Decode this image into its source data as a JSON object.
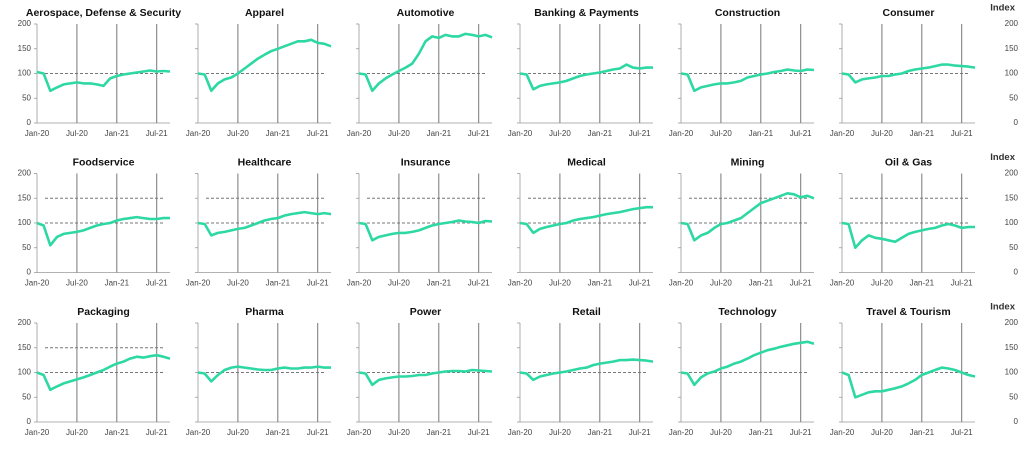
{
  "chart_data": [
    {
      "type": "line",
      "title": "Aerospace, Defense & Security",
      "categories": [
        "Jan-20",
        null,
        null,
        null,
        null,
        null,
        "Jul-20",
        null,
        null,
        null,
        null,
        null,
        "Jan-21",
        null,
        null,
        null,
        null,
        null,
        "Jul-21",
        null,
        null
      ],
      "series": [
        {
          "color": "#2ed8a3",
          "values": [
            103,
            100,
            65,
            72,
            78,
            80,
            82,
            80,
            80,
            78,
            75,
            90,
            95,
            98,
            100,
            102,
            104,
            106,
            104,
            105,
            104
          ]
        }
      ],
      "ylim": [
        0,
        200
      ],
      "yticks": [
        0,
        50,
        100,
        150,
        200
      ],
      "ref_lines": [
        100
      ]
    },
    {
      "type": "line",
      "title": "Apparel",
      "categories": [
        "Jan-20",
        null,
        null,
        null,
        null,
        null,
        "Jul-20",
        null,
        null,
        null,
        null,
        null,
        "Jan-21",
        null,
        null,
        null,
        null,
        null,
        "Jul-21",
        null,
        null
      ],
      "series": [
        {
          "color": "#2ed8a3",
          "values": [
            100,
            98,
            65,
            80,
            88,
            92,
            100,
            110,
            120,
            130,
            138,
            145,
            150,
            155,
            160,
            165,
            165,
            168,
            162,
            160,
            155
          ]
        }
      ],
      "ylim": [
        0,
        200
      ],
      "yticks": [
        0,
        50,
        100,
        150,
        200
      ],
      "ref_lines": [
        100
      ]
    },
    {
      "type": "line",
      "title": "Automotive",
      "categories": [
        "Jan-20",
        null,
        null,
        null,
        null,
        null,
        "Jul-20",
        null,
        null,
        null,
        null,
        null,
        "Jan-21",
        null,
        null,
        null,
        null,
        null,
        "Jul-21",
        null,
        null
      ],
      "series": [
        {
          "color": "#2ed8a3",
          "values": [
            100,
            98,
            65,
            80,
            90,
            98,
            105,
            112,
            120,
            140,
            165,
            175,
            172,
            178,
            175,
            175,
            180,
            178,
            175,
            178,
            173
          ]
        }
      ],
      "ylim": [
        0,
        200
      ],
      "yticks": [
        0,
        50,
        100,
        150,
        200
      ],
      "ref_lines": [
        100
      ]
    },
    {
      "type": "line",
      "title": "Banking & Payments",
      "categories": [
        "Jan-20",
        null,
        null,
        null,
        null,
        null,
        "Jul-20",
        null,
        null,
        null,
        null,
        null,
        "Jan-21",
        null,
        null,
        null,
        null,
        null,
        "Jul-21",
        null,
        null
      ],
      "series": [
        {
          "color": "#2ed8a3",
          "values": [
            100,
            98,
            68,
            75,
            78,
            80,
            82,
            85,
            90,
            95,
            98,
            100,
            102,
            105,
            108,
            110,
            118,
            112,
            110,
            112,
            112
          ]
        }
      ],
      "ylim": [
        0,
        200
      ],
      "yticks": [
        0,
        50,
        100,
        150,
        200
      ],
      "ref_lines": [
        100
      ]
    },
    {
      "type": "line",
      "title": "Construction",
      "categories": [
        "Jan-20",
        null,
        null,
        null,
        null,
        null,
        "Jul-20",
        null,
        null,
        null,
        null,
        null,
        "Jan-21",
        null,
        null,
        null,
        null,
        null,
        "Jul-21",
        null,
        null
      ],
      "series": [
        {
          "color": "#2ed8a3",
          "values": [
            100,
            98,
            65,
            72,
            75,
            78,
            80,
            80,
            82,
            85,
            92,
            95,
            98,
            100,
            103,
            105,
            108,
            106,
            105,
            108,
            107
          ]
        }
      ],
      "ylim": [
        0,
        200
      ],
      "yticks": [
        0,
        50,
        100,
        150,
        200
      ],
      "ref_lines": [
        100
      ]
    },
    {
      "type": "line",
      "title": "Consumer",
      "y_label": "Index",
      "categories": [
        "Jan-20",
        null,
        null,
        null,
        null,
        null,
        "Jul-20",
        null,
        null,
        null,
        null,
        null,
        "Jan-21",
        null,
        null,
        null,
        null,
        null,
        "Jul-21",
        null,
        null
      ],
      "series": [
        {
          "color": "#2ed8a3",
          "values": [
            100,
            98,
            82,
            88,
            90,
            92,
            95,
            95,
            98,
            100,
            105,
            108,
            110,
            112,
            115,
            118,
            118,
            116,
            115,
            114,
            112
          ]
        }
      ],
      "ylim": [
        0,
        200
      ],
      "yticks": [
        0,
        50,
        100,
        150,
        200
      ],
      "ref_lines": [
        100
      ]
    },
    {
      "type": "line",
      "title": "Foodservice",
      "categories": [
        "Jan-20",
        null,
        null,
        null,
        null,
        null,
        "Jul-20",
        null,
        null,
        null,
        null,
        null,
        "Jan-21",
        null,
        null,
        null,
        null,
        null,
        "Jul-21",
        null,
        null
      ],
      "series": [
        {
          "color": "#2ed8a3",
          "values": [
            100,
            95,
            55,
            72,
            78,
            80,
            82,
            85,
            90,
            95,
            98,
            100,
            105,
            108,
            110,
            112,
            110,
            108,
            108,
            110,
            110
          ]
        }
      ],
      "ylim": [
        0,
        200
      ],
      "yticks": [
        0,
        50,
        100,
        150,
        200
      ],
      "ref_lines": [
        100,
        150
      ]
    },
    {
      "type": "line",
      "title": "Healthcare",
      "categories": [
        "Jan-20",
        null,
        null,
        null,
        null,
        null,
        "Jul-20",
        null,
        null,
        null,
        null,
        null,
        "Jan-21",
        null,
        null,
        null,
        null,
        null,
        "Jul-21",
        null,
        null
      ],
      "series": [
        {
          "color": "#2ed8a3",
          "values": [
            100,
            98,
            75,
            80,
            82,
            85,
            88,
            90,
            95,
            100,
            105,
            108,
            110,
            115,
            118,
            120,
            122,
            120,
            118,
            120,
            118
          ]
        }
      ],
      "ylim": [
        0,
        200
      ],
      "yticks": [
        0,
        50,
        100,
        150,
        200
      ],
      "ref_lines": [
        100,
        150
      ]
    },
    {
      "type": "line",
      "title": "Insurance",
      "categories": [
        "Jan-20",
        null,
        null,
        null,
        null,
        null,
        "Jul-20",
        null,
        null,
        null,
        null,
        null,
        "Jan-21",
        null,
        null,
        null,
        null,
        null,
        "Jul-21",
        null,
        null
      ],
      "series": [
        {
          "color": "#2ed8a3",
          "values": [
            100,
            98,
            65,
            72,
            75,
            78,
            80,
            80,
            82,
            85,
            90,
            95,
            98,
            100,
            102,
            105,
            103,
            102,
            100,
            104,
            103
          ]
        }
      ],
      "ylim": [
        0,
        200
      ],
      "yticks": [
        0,
        50,
        100,
        150,
        200
      ],
      "ref_lines": [
        100,
        150
      ]
    },
    {
      "type": "line",
      "title": "Medical",
      "categories": [
        "Jan-20",
        null,
        null,
        null,
        null,
        null,
        "Jul-20",
        null,
        null,
        null,
        null,
        null,
        "Jan-21",
        null,
        null,
        null,
        null,
        null,
        "Jul-21",
        null,
        null
      ],
      "series": [
        {
          "color": "#2ed8a3",
          "values": [
            100,
            98,
            80,
            88,
            92,
            95,
            98,
            100,
            105,
            108,
            110,
            112,
            115,
            118,
            120,
            122,
            125,
            128,
            130,
            132,
            132
          ]
        }
      ],
      "ylim": [
        0,
        200
      ],
      "yticks": [
        0,
        50,
        100,
        150,
        200
      ],
      "ref_lines": [
        100,
        150
      ]
    },
    {
      "type": "line",
      "title": "Mining",
      "categories": [
        "Jan-20",
        null,
        null,
        null,
        null,
        null,
        "Jul-20",
        null,
        null,
        null,
        null,
        null,
        "Jan-21",
        null,
        null,
        null,
        null,
        null,
        "Jul-21",
        null,
        null
      ],
      "series": [
        {
          "color": "#2ed8a3",
          "values": [
            100,
            98,
            65,
            75,
            80,
            90,
            98,
            100,
            105,
            110,
            120,
            130,
            140,
            145,
            150,
            155,
            160,
            158,
            152,
            155,
            150
          ]
        }
      ],
      "ylim": [
        0,
        200
      ],
      "yticks": [
        0,
        50,
        100,
        150,
        200
      ],
      "ref_lines": [
        100,
        150
      ]
    },
    {
      "type": "line",
      "title": "Oil & Gas",
      "y_label": "Index",
      "categories": [
        "Jan-20",
        null,
        null,
        null,
        null,
        null,
        "Jul-20",
        null,
        null,
        null,
        null,
        null,
        "Jan-21",
        null,
        null,
        null,
        null,
        null,
        "Jul-21",
        null,
        null
      ],
      "series": [
        {
          "color": "#2ed8a3",
          "values": [
            100,
            98,
            50,
            65,
            75,
            70,
            68,
            65,
            62,
            70,
            78,
            82,
            85,
            88,
            90,
            95,
            98,
            95,
            90,
            92,
            92
          ]
        }
      ],
      "ylim": [
        0,
        200
      ],
      "yticks": [
        0,
        50,
        100,
        150,
        200
      ],
      "ref_lines": [
        100,
        150
      ]
    },
    {
      "type": "line",
      "title": "Packaging",
      "categories": [
        "Jan-20",
        null,
        null,
        null,
        null,
        null,
        "Jul-20",
        null,
        null,
        null,
        null,
        null,
        "Jan-21",
        null,
        null,
        null,
        null,
        null,
        "Jul-21",
        null,
        null
      ],
      "series": [
        {
          "color": "#2ed8a3",
          "values": [
            100,
            95,
            65,
            72,
            78,
            82,
            86,
            90,
            95,
            100,
            105,
            112,
            118,
            122,
            128,
            132,
            130,
            133,
            135,
            132,
            128
          ]
        }
      ],
      "ylim": [
        0,
        200
      ],
      "yticks": [
        0,
        50,
        100,
        150,
        200
      ],
      "ref_lines": [
        100,
        150
      ]
    },
    {
      "type": "line",
      "title": "Pharma",
      "categories": [
        "Jan-20",
        null,
        null,
        null,
        null,
        null,
        "Jul-20",
        null,
        null,
        null,
        null,
        null,
        "Jan-21",
        null,
        null,
        null,
        null,
        null,
        "Jul-21",
        null,
        null
      ],
      "series": [
        {
          "color": "#2ed8a3",
          "values": [
            100,
            98,
            82,
            95,
            105,
            110,
            112,
            110,
            108,
            106,
            105,
            105,
            108,
            110,
            108,
            108,
            110,
            110,
            112,
            110,
            110
          ]
        }
      ],
      "ylim": [
        0,
        200
      ],
      "yticks": [
        0,
        50,
        100,
        150,
        200
      ],
      "ref_lines": [
        100
      ]
    },
    {
      "type": "line",
      "title": "Power",
      "categories": [
        "Jan-20",
        null,
        null,
        null,
        null,
        null,
        "Jul-20",
        null,
        null,
        null,
        null,
        null,
        "Jan-21",
        null,
        null,
        null,
        null,
        null,
        "Jul-21",
        null,
        null
      ],
      "series": [
        {
          "color": "#2ed8a3",
          "values": [
            100,
            98,
            75,
            85,
            88,
            90,
            92,
            92,
            93,
            95,
            95,
            98,
            100,
            102,
            103,
            103,
            102,
            105,
            104,
            103,
            102
          ]
        }
      ],
      "ylim": [
        0,
        200
      ],
      "yticks": [
        0,
        50,
        100,
        150,
        200
      ],
      "ref_lines": [
        100
      ]
    },
    {
      "type": "line",
      "title": "Retail",
      "categories": [
        "Jan-20",
        null,
        null,
        null,
        null,
        null,
        "Jul-20",
        null,
        null,
        null,
        null,
        null,
        "Jan-21",
        null,
        null,
        null,
        null,
        null,
        "Jul-21",
        null,
        null
      ],
      "series": [
        {
          "color": "#2ed8a3",
          "values": [
            100,
            98,
            85,
            92,
            95,
            98,
            100,
            102,
            105,
            108,
            110,
            115,
            118,
            120,
            122,
            125,
            125,
            126,
            125,
            124,
            122
          ]
        }
      ],
      "ylim": [
        0,
        200
      ],
      "yticks": [
        0,
        50,
        100,
        150,
        200
      ],
      "ref_lines": [
        100
      ]
    },
    {
      "type": "line",
      "title": "Technology",
      "categories": [
        "Jan-20",
        null,
        null,
        null,
        null,
        null,
        "Jul-20",
        null,
        null,
        null,
        null,
        null,
        "Jan-21",
        null,
        null,
        null,
        null,
        null,
        "Jul-21",
        null,
        null
      ],
      "series": [
        {
          "color": "#2ed8a3",
          "values": [
            100,
            98,
            75,
            90,
            98,
            102,
            108,
            112,
            118,
            122,
            128,
            135,
            140,
            145,
            148,
            152,
            155,
            158,
            160,
            162,
            158
          ]
        }
      ],
      "ylim": [
        0,
        200
      ],
      "yticks": [
        0,
        50,
        100,
        150,
        200
      ],
      "ref_lines": [
        100
      ]
    },
    {
      "type": "line",
      "title": "Travel & Tourism",
      "y_label": "Index",
      "categories": [
        "Jan-20",
        null,
        null,
        null,
        null,
        null,
        "Jul-20",
        null,
        null,
        null,
        null,
        null,
        "Jan-21",
        null,
        null,
        null,
        null,
        null,
        "Jul-21",
        null,
        null
      ],
      "series": [
        {
          "color": "#2ed8a3",
          "values": [
            100,
            95,
            50,
            55,
            60,
            62,
            62,
            65,
            68,
            72,
            78,
            85,
            95,
            100,
            105,
            110,
            108,
            105,
            100,
            95,
            92
          ]
        }
      ],
      "ylim": [
        0,
        200
      ],
      "yticks": [
        0,
        50,
        100,
        150,
        200
      ],
      "ref_lines": [
        100
      ]
    }
  ]
}
